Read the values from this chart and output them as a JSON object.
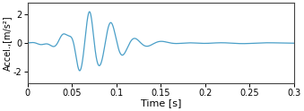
{
  "title": "",
  "xlabel": "Time [s]",
  "ylabel": "Accel.,[m/s²]",
  "xlim": [
    0,
    0.3
  ],
  "ylim": [
    -2.8,
    2.8
  ],
  "yticks": [
    -2,
    0,
    2
  ],
  "xticks": [
    0,
    0.05,
    0.1,
    0.15,
    0.2,
    0.25,
    0.3
  ],
  "line_color": "#4a9fc8",
  "line_width": 0.9,
  "background_color": "#ffffff",
  "figsize": [
    3.39,
    1.24
  ],
  "dpi": 100,
  "tick_fontsize": 7,
  "label_fontsize": 8,
  "ylabel_fontsize": 7
}
